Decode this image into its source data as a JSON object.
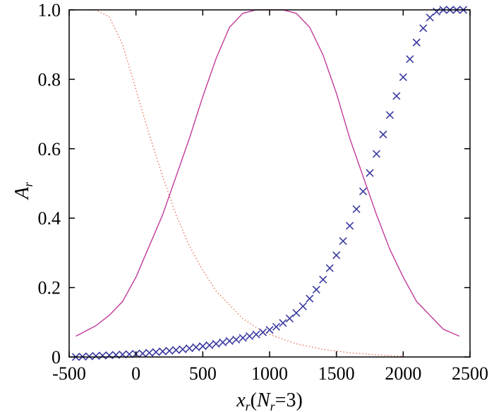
{
  "chart_data": {
    "type": "line",
    "xlabel": {
      "var": "x",
      "sub": "r",
      "paren_open": "(",
      "nvar": "N",
      "nsub": "r",
      "eq": "=3)"
    },
    "ylabel": {
      "var": "A",
      "sub": "r"
    },
    "xlim": [
      -500,
      2500
    ],
    "ylim": [
      0,
      1.0
    ],
    "xticks": [
      -500,
      0,
      500,
      1000,
      1500,
      2000,
      2500
    ],
    "xtick_labels": [
      "-500",
      "0",
      "500",
      "1000",
      "1500",
      "2000",
      "2500"
    ],
    "yticks": [
      0,
      0.2,
      0.4,
      0.6,
      0.8,
      1.0
    ],
    "ytick_labels": [
      "0",
      "0.2",
      "0.4",
      "0.6",
      "0.8",
      "1.0"
    ],
    "grid": false,
    "series": [
      {
        "style": "dotted",
        "color": "#e8735a",
        "x": [
          -450,
          -300,
          -200,
          -100,
          0,
          100,
          200,
          300,
          400,
          500,
          600,
          700,
          800,
          900,
          1000,
          1200,
          1400,
          1600,
          1800,
          2000
        ],
        "y": [
          1.0,
          1.0,
          0.98,
          0.9,
          0.77,
          0.64,
          0.52,
          0.41,
          0.32,
          0.25,
          0.19,
          0.15,
          0.11,
          0.085,
          0.065,
          0.038,
          0.022,
          0.012,
          0.006,
          0.002
        ]
      },
      {
        "style": "solid",
        "color": "#c23a9a",
        "x": [
          -450,
          -300,
          -200,
          -100,
          0,
          100,
          200,
          300,
          400,
          500,
          600,
          700,
          800,
          900,
          1000,
          1100,
          1200,
          1300,
          1400,
          1500,
          1600,
          1700,
          1800,
          1900,
          2000,
          2100,
          2200,
          2300,
          2420
        ],
        "y": [
          0.06,
          0.09,
          0.12,
          0.16,
          0.23,
          0.32,
          0.41,
          0.52,
          0.63,
          0.75,
          0.86,
          0.95,
          0.99,
          1.0,
          1.0,
          1.0,
          0.99,
          0.95,
          0.87,
          0.76,
          0.63,
          0.52,
          0.41,
          0.31,
          0.23,
          0.16,
          0.12,
          0.08,
          0.06
        ]
      },
      {
        "style": "cross",
        "color": "#3a3aa0",
        "x": [
          -450,
          -400,
          -350,
          -300,
          -250,
          -200,
          -150,
          -100,
          -50,
          0,
          50,
          100,
          150,
          200,
          250,
          300,
          350,
          400,
          450,
          500,
          550,
          600,
          650,
          700,
          750,
          800,
          850,
          900,
          950,
          1000,
          1050,
          1100,
          1150,
          1200,
          1250,
          1300,
          1350,
          1400,
          1450,
          1500,
          1550,
          1600,
          1650,
          1700,
          1750,
          1800,
          1850,
          1900,
          1950,
          2000,
          2050,
          2100,
          2150,
          2200,
          2250,
          2300,
          2350,
          2400,
          2450
        ],
        "y": [
          0.0,
          0.001,
          0.002,
          0.003,
          0.004,
          0.005,
          0.006,
          0.007,
          0.008,
          0.009,
          0.01,
          0.012,
          0.014,
          0.016,
          0.018,
          0.02,
          0.022,
          0.025,
          0.028,
          0.031,
          0.034,
          0.038,
          0.042,
          0.046,
          0.05,
          0.055,
          0.06,
          0.065,
          0.071,
          0.078,
          0.087,
          0.098,
          0.111,
          0.127,
          0.146,
          0.168,
          0.194,
          0.223,
          0.256,
          0.293,
          0.334,
          0.378,
          0.426,
          0.477,
          0.53,
          0.585,
          0.641,
          0.697,
          0.752,
          0.806,
          0.858,
          0.906,
          0.947,
          0.978,
          0.995,
          1.0,
          1.0,
          1.0,
          1.0
        ]
      }
    ]
  }
}
